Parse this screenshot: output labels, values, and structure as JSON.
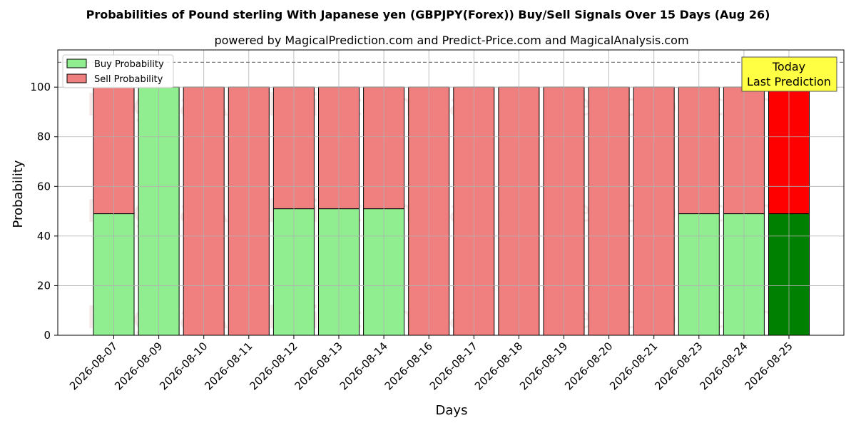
{
  "chart_data": {
    "type": "bar",
    "stacked": true,
    "title": "Probabilities of Pound sterling With Japanese yen (GBPJPY(Forex)) Buy/Sell Signals Over 15 Days (Aug 26)",
    "subtitle": "powered by MagicalPrediction.com and Predict-Price.com and MagicalAnalysis.com",
    "xlabel": "Days",
    "ylabel": "Probability",
    "ylim": [
      0,
      115
    ],
    "yticks": [
      0,
      20,
      40,
      60,
      80,
      100
    ],
    "grid": true,
    "legend_position": "top-left",
    "reference_line": 110,
    "categories": [
      "2026-08-07",
      "2026-08-09",
      "2026-08-10",
      "2026-08-11",
      "2026-08-12",
      "2026-08-13",
      "2026-08-14",
      "2026-08-16",
      "2026-08-17",
      "2026-08-18",
      "2026-08-19",
      "2026-08-20",
      "2026-08-21",
      "2026-08-23",
      "2026-08-24",
      "2026-08-25"
    ],
    "series": [
      {
        "name": "Buy Probability",
        "color": "#90ee90",
        "highlight_color": "#008000",
        "values": [
          49,
          100,
          0,
          0,
          51,
          51,
          51,
          0,
          0,
          0,
          0,
          0,
          0,
          49,
          49,
          49
        ]
      },
      {
        "name": "Sell Probability",
        "color": "#f08080",
        "highlight_color": "#ff0000",
        "values": [
          51,
          0,
          100,
          100,
          49,
          49,
          49,
          100,
          100,
          100,
          100,
          100,
          100,
          51,
          51,
          51
        ]
      }
    ],
    "annotation": {
      "lines": [
        "Today",
        "Last Prediction"
      ],
      "color": "#ffff44"
    },
    "watermarks": [
      "MagicalAnalysis.com",
      "MagicalPrediction.com"
    ]
  }
}
